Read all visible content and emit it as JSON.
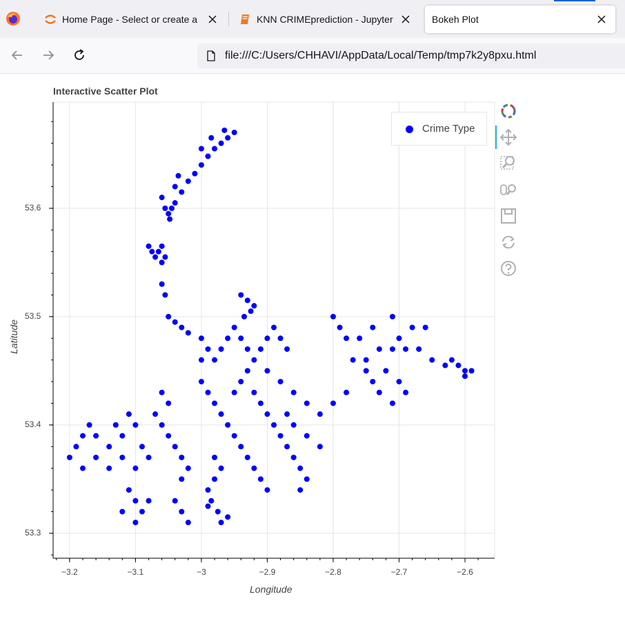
{
  "browser": {
    "tabs": [
      {
        "title": "Home Page - Select or create a",
        "favicon": "jupyter-icon",
        "close": "close-icon"
      },
      {
        "title": "KNN CRIMEprediction - Jupyter",
        "favicon": "notebook-icon",
        "close": "close-icon"
      },
      {
        "title": "Bokeh Plot",
        "favicon": "",
        "close": "close-icon",
        "active": true
      }
    ],
    "url": "file:///C:/Users/CHHAVI/AppData/Local/Temp/tmp7k2y8pxu.html",
    "accent_color": "#0060df"
  },
  "plot": {
    "title": "Interactive Scatter Plot",
    "legend": "Crime Type",
    "toolbar": [
      "bokeh-logo-icon",
      "pan-icon",
      "box-zoom-icon",
      "wheel-zoom-icon",
      "save-icon",
      "reset-icon",
      "help-icon"
    ]
  },
  "chart_data": {
    "type": "scatter",
    "xlabel": "Longitude",
    "ylabel": "Latitude",
    "xlim": [
      -3.225,
      -2.555
    ],
    "ylim": [
      53.277,
      53.698
    ],
    "x_ticks": [
      "−3.2",
      "−3.1",
      "−3",
      "−2.9",
      "−2.8",
      "−2.7",
      "−2.6"
    ],
    "y_ticks": [
      "53.3",
      "53.4",
      "53.5",
      "53.6"
    ],
    "x_tick_values": [
      -3.2,
      -3.1,
      -3.0,
      -2.9,
      -2.8,
      -2.7,
      -2.6
    ],
    "y_tick_values": [
      53.3,
      53.4,
      53.5,
      53.6
    ],
    "grid": true,
    "legend_position": "top-right",
    "marker_color": "#0000ff",
    "series": [
      {
        "name": "Crime Type",
        "points": [
          [
            -2.95,
            53.67
          ],
          [
            -2.96,
            53.665
          ],
          [
            -2.97,
            53.66
          ],
          [
            -2.98,
            53.655
          ],
          [
            -2.99,
            53.648
          ],
          [
            -3.0,
            53.64
          ],
          [
            -3.01,
            53.632
          ],
          [
            -3.02,
            53.625
          ],
          [
            -3.03,
            53.615
          ],
          [
            -3.04,
            53.62
          ],
          [
            -3.035,
            53.63
          ],
          [
            -3.0,
            53.655
          ],
          [
            -2.985,
            53.665
          ],
          [
            -2.965,
            53.672
          ],
          [
            -3.04,
            53.605
          ],
          [
            -3.045,
            53.6
          ],
          [
            -3.05,
            53.595
          ],
          [
            -3.055,
            53.6
          ],
          [
            -3.06,
            53.61
          ],
          [
            -3.048,
            53.59
          ],
          [
            -3.06,
            53.565
          ],
          [
            -3.065,
            53.56
          ],
          [
            -3.07,
            53.555
          ],
          [
            -3.075,
            53.56
          ],
          [
            -3.055,
            53.555
          ],
          [
            -3.06,
            53.55
          ],
          [
            -3.08,
            53.565
          ],
          [
            -3.06,
            53.53
          ],
          [
            -3.055,
            53.52
          ],
          [
            -2.93,
            53.515
          ],
          [
            -2.925,
            53.505
          ],
          [
            -2.935,
            53.5
          ],
          [
            -2.94,
            53.52
          ],
          [
            -2.92,
            53.51
          ],
          [
            -3.05,
            53.5
          ],
          [
            -3.04,
            53.495
          ],
          [
            -3.03,
            53.49
          ],
          [
            -3.02,
            53.485
          ],
          [
            -3.0,
            53.48
          ],
          [
            -2.99,
            53.47
          ],
          [
            -2.98,
            53.46
          ],
          [
            -2.97,
            53.47
          ],
          [
            -2.96,
            53.48
          ],
          [
            -2.95,
            53.49
          ],
          [
            -2.94,
            53.48
          ],
          [
            -2.93,
            53.47
          ],
          [
            -2.92,
            53.46
          ],
          [
            -2.91,
            53.47
          ],
          [
            -2.9,
            53.48
          ],
          [
            -2.89,
            53.49
          ],
          [
            -2.88,
            53.48
          ],
          [
            -2.87,
            53.47
          ],
          [
            -3.0,
            53.46
          ],
          [
            -3.0,
            53.44
          ],
          [
            -2.99,
            53.43
          ],
          [
            -2.98,
            53.42
          ],
          [
            -2.97,
            53.41
          ],
          [
            -2.96,
            53.4
          ],
          [
            -2.95,
            53.39
          ],
          [
            -2.94,
            53.38
          ],
          [
            -2.93,
            53.37
          ],
          [
            -2.92,
            53.36
          ],
          [
            -2.91,
            53.35
          ],
          [
            -2.9,
            53.34
          ],
          [
            -2.95,
            53.43
          ],
          [
            -2.94,
            53.44
          ],
          [
            -2.93,
            53.45
          ],
          [
            -2.92,
            53.43
          ],
          [
            -2.91,
            53.42
          ],
          [
            -2.9,
            53.41
          ],
          [
            -2.89,
            53.4
          ],
          [
            -2.88,
            53.39
          ],
          [
            -2.87,
            53.38
          ],
          [
            -2.86,
            53.37
          ],
          [
            -2.85,
            53.36
          ],
          [
            -2.84,
            53.35
          ],
          [
            -2.85,
            53.34
          ],
          [
            -2.9,
            53.45
          ],
          [
            -2.88,
            53.44
          ],
          [
            -2.86,
            53.43
          ],
          [
            -2.84,
            53.42
          ],
          [
            -2.82,
            53.41
          ],
          [
            -2.8,
            53.42
          ],
          [
            -2.78,
            53.43
          ],
          [
            -2.82,
            53.38
          ],
          [
            -2.84,
            53.39
          ],
          [
            -2.86,
            53.4
          ],
          [
            -2.87,
            53.41
          ],
          [
            -2.8,
            53.5
          ],
          [
            -2.79,
            53.49
          ],
          [
            -2.78,
            53.48
          ],
          [
            -2.77,
            53.46
          ],
          [
            -2.75,
            53.46
          ],
          [
            -2.73,
            53.47
          ],
          [
            -2.71,
            53.47
          ],
          [
            -2.69,
            53.47
          ],
          [
            -2.67,
            53.47
          ],
          [
            -2.65,
            53.46
          ],
          [
            -2.63,
            53.455
          ],
          [
            -2.61,
            53.455
          ],
          [
            -2.6,
            53.45
          ],
          [
            -2.68,
            53.49
          ],
          [
            -2.7,
            53.48
          ],
          [
            -2.72,
            53.45
          ],
          [
            -2.74,
            53.44
          ],
          [
            -2.7,
            53.44
          ],
          [
            -2.69,
            53.43
          ],
          [
            -2.71,
            53.42
          ],
          [
            -2.73,
            53.43
          ],
          [
            -2.75,
            53.45
          ],
          [
            -2.76,
            53.48
          ],
          [
            -2.74,
            53.49
          ],
          [
            -2.71,
            53.5
          ],
          [
            -2.66,
            53.49
          ],
          [
            -2.62,
            53.46
          ],
          [
            -2.6,
            53.445
          ],
          [
            -2.59,
            53.45
          ],
          [
            -2.98,
            53.37
          ],
          [
            -2.97,
            53.36
          ],
          [
            -2.98,
            53.35
          ],
          [
            -2.99,
            53.34
          ],
          [
            -2.985,
            53.33
          ],
          [
            -2.975,
            53.32
          ],
          [
            -2.97,
            53.31
          ],
          [
            -2.96,
            53.315
          ],
          [
            -2.99,
            53.325
          ],
          [
            -3.05,
            53.42
          ],
          [
            -3.06,
            53.43
          ],
          [
            -3.07,
            53.41
          ],
          [
            -3.06,
            53.4
          ],
          [
            -3.05,
            53.39
          ],
          [
            -3.04,
            53.38
          ],
          [
            -3.03,
            53.37
          ],
          [
            -3.02,
            53.36
          ],
          [
            -3.03,
            53.35
          ],
          [
            -3.1,
            53.4
          ],
          [
            -3.12,
            53.39
          ],
          [
            -3.14,
            53.38
          ],
          [
            -3.16,
            53.39
          ],
          [
            -3.17,
            53.4
          ],
          [
            -3.18,
            53.39
          ],
          [
            -3.19,
            53.38
          ],
          [
            -3.2,
            53.37
          ],
          [
            -3.18,
            53.36
          ],
          [
            -3.16,
            53.37
          ],
          [
            -3.14,
            53.36
          ],
          [
            -3.12,
            53.37
          ],
          [
            -3.1,
            53.36
          ],
          [
            -3.08,
            53.37
          ],
          [
            -3.09,
            53.38
          ],
          [
            -3.11,
            53.41
          ],
          [
            -3.13,
            53.4
          ],
          [
            -3.11,
            53.34
          ],
          [
            -3.1,
            53.33
          ],
          [
            -3.09,
            53.32
          ],
          [
            -3.1,
            53.31
          ],
          [
            -3.08,
            53.33
          ],
          [
            -3.12,
            53.32
          ],
          [
            -3.04,
            53.33
          ],
          [
            -3.03,
            53.32
          ],
          [
            -3.02,
            53.31
          ]
        ]
      }
    ]
  }
}
